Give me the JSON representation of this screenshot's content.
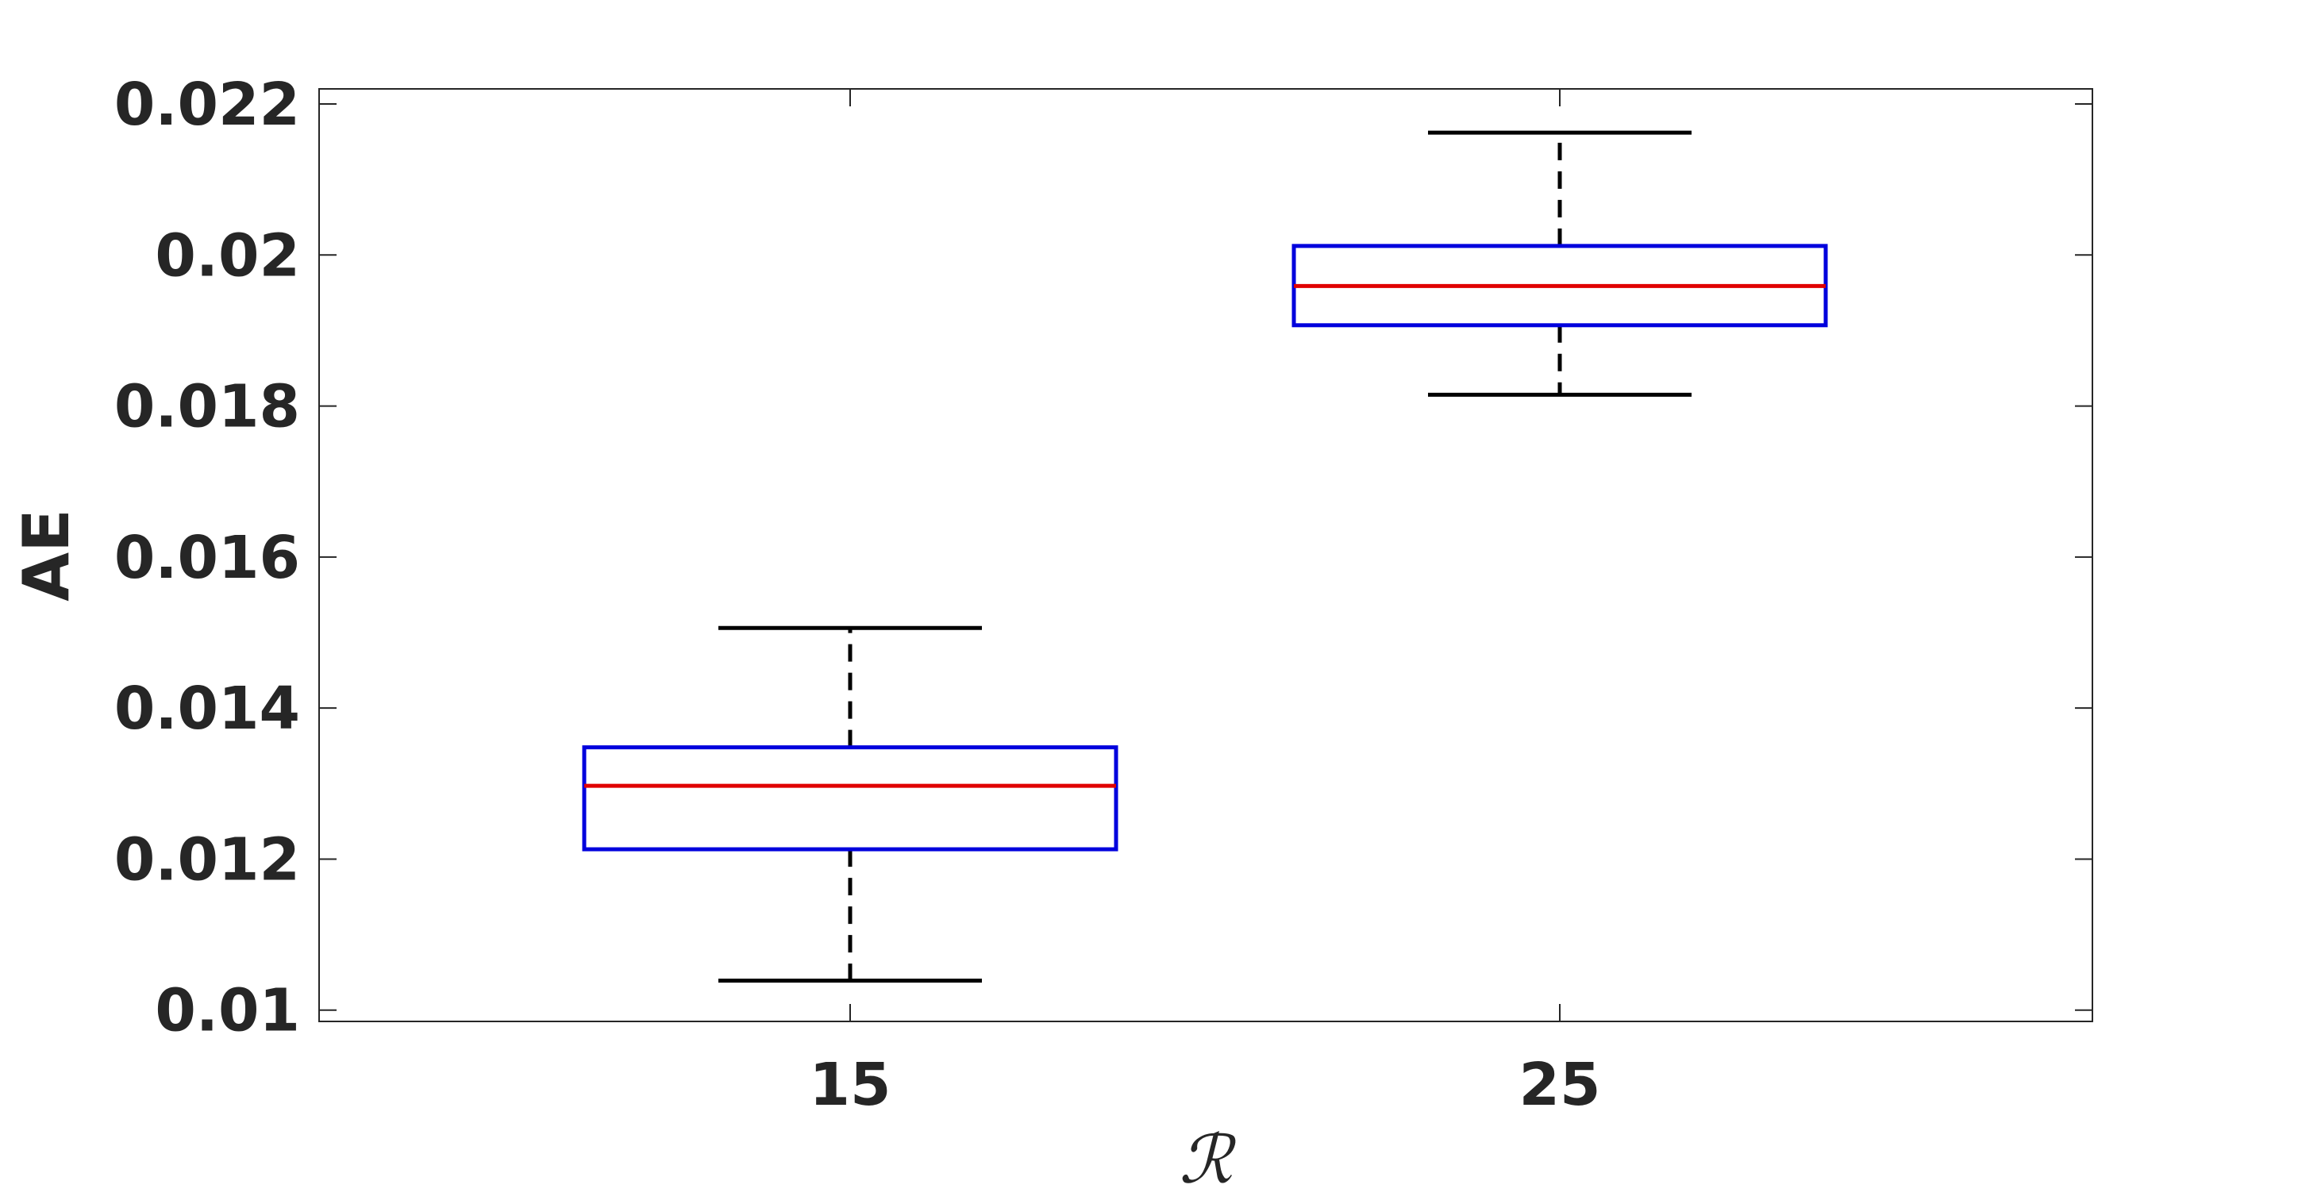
{
  "chart_data": {
    "type": "box",
    "categories": [
      "15",
      "25"
    ],
    "boxes": [
      {
        "category": "15",
        "whisker_low": 0.01039,
        "q1": 0.01213,
        "median": 0.01297,
        "q3": 0.01348,
        "whisker_high": 0.01506
      },
      {
        "category": "25",
        "whisker_low": 0.01815,
        "q1": 0.01907,
        "median": 0.01959,
        "q3": 0.02012,
        "whisker_high": 0.02162
      }
    ],
    "title": "",
    "xlabel": "ℛ",
    "ylabel": "AE",
    "ylim": [
      0.00985,
      0.0222
    ],
    "yticks": [
      0.01,
      0.012,
      0.014,
      0.016,
      0.018,
      0.02,
      0.022
    ],
    "ytick_labels": [
      "0.01",
      "0.012",
      "0.014",
      "0.016",
      "0.018",
      "0.02",
      "0.022"
    ],
    "grid": false,
    "colors": {
      "box": "#0000dd",
      "median": "#e00000",
      "whisker": "#000000",
      "axes": "#262626"
    }
  }
}
